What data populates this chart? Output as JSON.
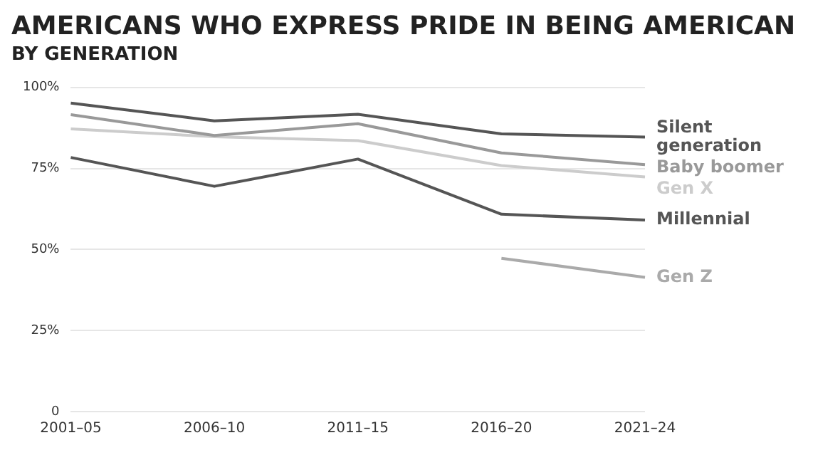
{
  "chart_data": {
    "type": "line",
    "title": "AMERICANS WHO EXPRESS PRIDE IN BEING AMERICAN",
    "subtitle": "BY GENERATION",
    "categories": [
      "2001–05",
      "2006–10",
      "2011–15",
      "2016–20",
      "2021–24"
    ],
    "series": [
      {
        "name": "Silent generation",
        "color": "#555555",
        "values": [
          95.2,
          89.7,
          91.7,
          85.7,
          84.7
        ]
      },
      {
        "name": "Baby boomer",
        "color": "#999999",
        "values": [
          91.6,
          85.2,
          88.8,
          79.8,
          76.2
        ]
      },
      {
        "name": "Gen X",
        "color": "#cccccc",
        "values": [
          87.2,
          84.8,
          83.6,
          75.9,
          72.4
        ]
      },
      {
        "name": "Millennial",
        "color": "#555555",
        "values": [
          78.4,
          69.5,
          77.9,
          60.9,
          59.1
        ]
      },
      {
        "name": "Gen Z",
        "color": "#aaaaaa",
        "values": [
          null,
          null,
          null,
          47.3,
          41.4
        ]
      }
    ],
    "ylim": [
      0,
      100
    ],
    "yticks": [
      {
        "value": 0,
        "label": "0"
      },
      {
        "value": 25,
        "label": "25%"
      },
      {
        "value": 50,
        "label": "50%"
      },
      {
        "value": 75,
        "label": "75%"
      },
      {
        "value": 100,
        "label": "100%"
      }
    ],
    "grid": "y",
    "legend": false,
    "marker": "none",
    "line_style": "solid"
  }
}
